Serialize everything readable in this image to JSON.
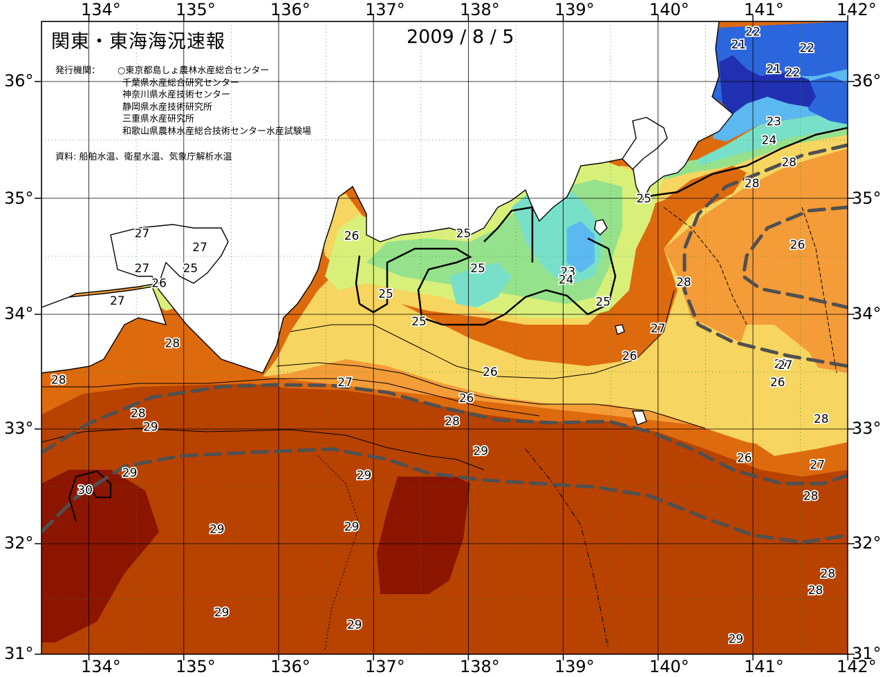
{
  "header": {
    "title": "関東・東海海況速報",
    "date": "2009 / 8 / 5"
  },
  "issuers": {
    "label": "発行機関：",
    "items": [
      "○東京都島しょ農林水産総合センター",
      "千葉県水産総合研究センター",
      "神奈川県水産技術センター",
      "静岡県水産技術研究所",
      "三重県水産研究所",
      "和歌山県農林水産総合技術センター水産試験場"
    ]
  },
  "source": "資料: 船舶水温、衛星水温、気象庁解析水温",
  "axes": {
    "lon_ticks": [
      "134°",
      "135°",
      "136°",
      "137°",
      "138°",
      "139°",
      "140°",
      "141°",
      "142°"
    ],
    "lat_ticks": [
      "36°",
      "35°",
      "34°",
      "33°",
      "32°",
      "31°"
    ]
  },
  "contour_labels": [
    {
      "text": "21",
      "lon": 140.85,
      "lat": 36.32
    },
    {
      "text": "22",
      "lon": 141.0,
      "lat": 36.43
    },
    {
      "text": "22",
      "lon": 141.57,
      "lat": 36.29
    },
    {
      "text": "21",
      "lon": 141.22,
      "lat": 36.11
    },
    {
      "text": "22",
      "lon": 141.42,
      "lat": 36.08
    },
    {
      "text": "23",
      "lon": 141.22,
      "lat": 35.66
    },
    {
      "text": "24",
      "lon": 141.17,
      "lat": 35.5
    },
    {
      "text": "28",
      "lon": 141.38,
      "lat": 35.31
    },
    {
      "text": "28",
      "lon": 140.99,
      "lat": 35.13
    },
    {
      "text": "25",
      "lon": 139.85,
      "lat": 35.0
    },
    {
      "text": "26",
      "lon": 141.47,
      "lat": 34.6
    },
    {
      "text": "25",
      "lon": 137.95,
      "lat": 34.7
    },
    {
      "text": "25",
      "lon": 138.1,
      "lat": 34.4
    },
    {
      "text": "23",
      "lon": 139.05,
      "lat": 34.37
    },
    {
      "text": "24",
      "lon": 139.03,
      "lat": 34.3
    },
    {
      "text": "25",
      "lon": 137.13,
      "lat": 34.18
    },
    {
      "text": "25",
      "lon": 139.42,
      "lat": 34.11
    },
    {
      "text": "25",
      "lon": 137.48,
      "lat": 33.94
    },
    {
      "text": "26",
      "lon": 136.77,
      "lat": 34.68
    },
    {
      "text": "27",
      "lon": 134.56,
      "lat": 34.7
    },
    {
      "text": "27",
      "lon": 135.17,
      "lat": 34.58
    },
    {
      "text": "27",
      "lon": 134.56,
      "lat": 34.4
    },
    {
      "text": "25",
      "lon": 135.07,
      "lat": 34.4
    },
    {
      "text": "26",
      "lon": 134.74,
      "lat": 34.27
    },
    {
      "text": "27",
      "lon": 134.3,
      "lat": 34.12
    },
    {
      "text": "28",
      "lon": 134.88,
      "lat": 33.75
    },
    {
      "text": "28",
      "lon": 140.27,
      "lat": 34.28
    },
    {
      "text": "27",
      "lon": 140.0,
      "lat": 33.88
    },
    {
      "text": "26",
      "lon": 139.7,
      "lat": 33.64
    },
    {
      "text": "26",
      "lon": 138.23,
      "lat": 33.5
    },
    {
      "text": "27",
      "lon": 136.7,
      "lat": 33.41
    },
    {
      "text": "26",
      "lon": 137.98,
      "lat": 33.27
    },
    {
      "text": "27",
      "lon": 141.3,
      "lat": 33.57
    },
    {
      "text": "27",
      "lon": 141.34,
      "lat": 33.56
    },
    {
      "text": "26",
      "lon": 141.26,
      "lat": 33.41
    },
    {
      "text": "28",
      "lon": 133.68,
      "lat": 33.43
    },
    {
      "text": "28",
      "lon": 134.52,
      "lat": 33.14
    },
    {
      "text": "29",
      "lon": 134.65,
      "lat": 33.02
    },
    {
      "text": "28",
      "lon": 137.83,
      "lat": 33.07
    },
    {
      "text": "28",
      "lon": 141.72,
      "lat": 33.09
    },
    {
      "text": "29",
      "lon": 138.13,
      "lat": 32.81
    },
    {
      "text": "26",
      "lon": 140.91,
      "lat": 32.75
    },
    {
      "text": "27",
      "lon": 141.68,
      "lat": 32.69
    },
    {
      "text": "29",
      "lon": 134.43,
      "lat": 32.62
    },
    {
      "text": "29",
      "lon": 136.9,
      "lat": 32.6
    },
    {
      "text": "30",
      "lon": 133.96,
      "lat": 32.47
    },
    {
      "text": "28",
      "lon": 141.61,
      "lat": 32.42
    },
    {
      "text": "29",
      "lon": 135.35,
      "lat": 32.13
    },
    {
      "text": "29",
      "lon": 136.77,
      "lat": 32.15
    },
    {
      "text": "28",
      "lon": 141.79,
      "lat": 31.73
    },
    {
      "text": "28",
      "lon": 141.66,
      "lat": 31.58
    },
    {
      "text": "29",
      "lon": 135.4,
      "lat": 31.38
    },
    {
      "text": "29",
      "lon": 136.8,
      "lat": 31.27
    },
    {
      "text": "29",
      "lon": 140.82,
      "lat": 31.14
    }
  ],
  "colors": {
    "t30": "#8c1500",
    "t29": "#b84200",
    "t28": "#de6a0e",
    "t27": "#f49c38",
    "t26": "#f6d560",
    "t25": "#d8f07a",
    "t24": "#96e28c",
    "t23": "#78e0c8",
    "t22": "#5cb8f0",
    "t21": "#2c66dc",
    "t20": "#2030b0",
    "land": "#ffffff",
    "current_axis": "#505050"
  }
}
